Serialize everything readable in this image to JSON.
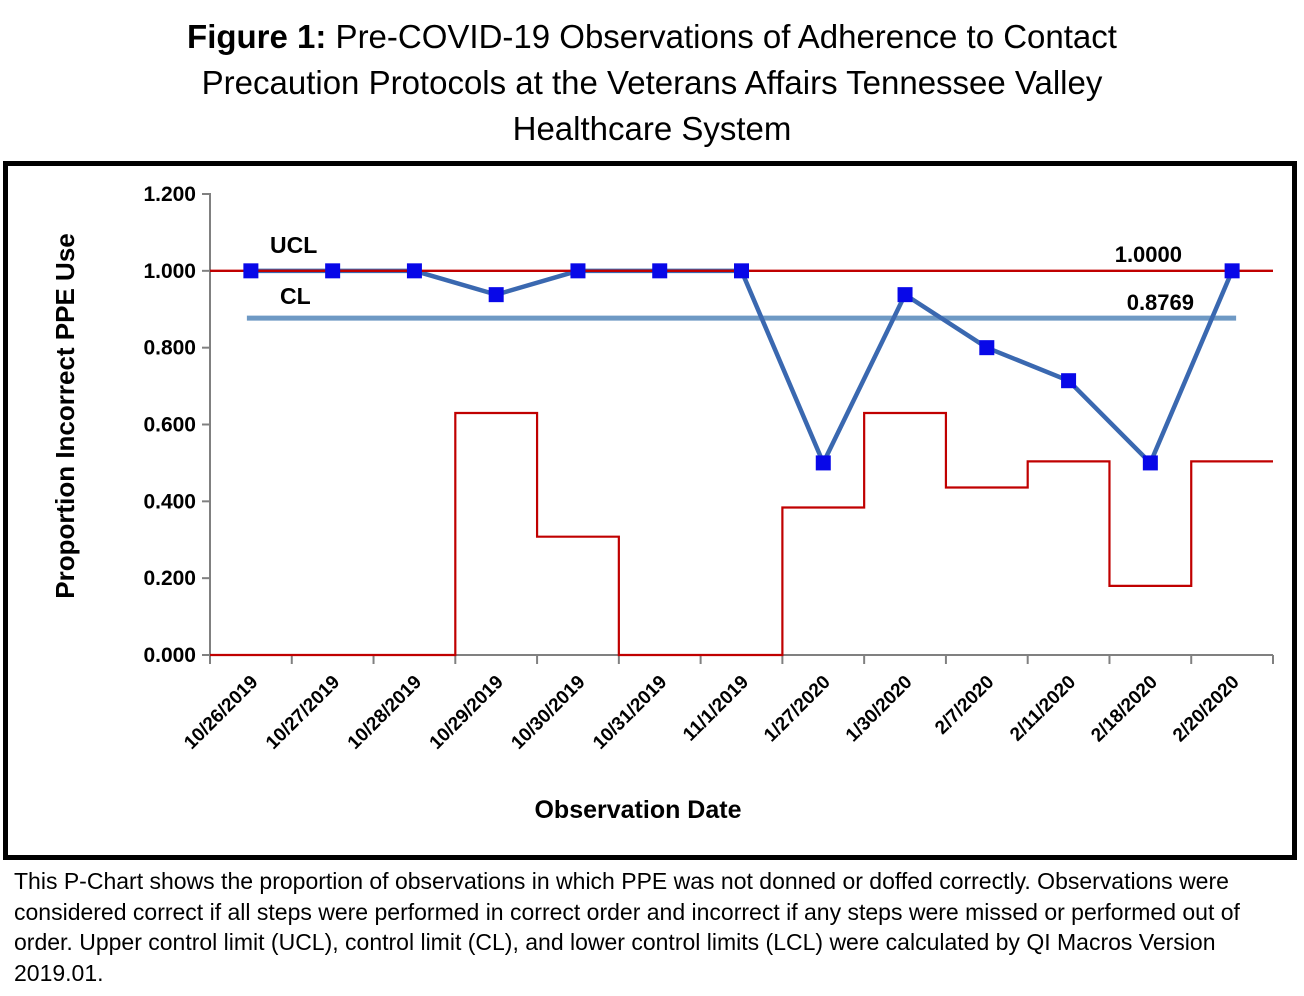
{
  "title": {
    "prefix": "Figure 1:",
    "line1_rest": " Pre-COVID-19 Observations of Adherence to Contact",
    "line2": "Precaution Protocols at the Veterans Affairs Tennessee Valley",
    "line3": "Healthcare System"
  },
  "caption": "This P-Chart shows the proportion of observations in which PPE was not donned or doffed correctly. Observations were considered correct if all steps were performed in correct order and incorrect if any steps were missed or performed out of order. Upper control limit (UCL), control limit (CL), and lower control limits (LCL) were calculated by QI Macros Version 2019.01.",
  "chart_data": {
    "type": "line",
    "xlabel": "Observation Date",
    "ylabel": "Proportion Incorrect PPE Use",
    "ylim": [
      0,
      1.2
    ],
    "ytick_labels": [
      "0.000",
      "0.200",
      "0.400",
      "0.600",
      "0.800",
      "1.000",
      "1.200"
    ],
    "grid": false,
    "legend_position": "none",
    "categories": [
      "10/26/2019",
      "10/27/2019",
      "10/28/2019",
      "10/29/2019",
      "10/30/2019",
      "10/31/2019",
      "11/1/2019",
      "1/27/2020",
      "1/30/2020",
      "2/7/2020",
      "2/11/2020",
      "2/18/2020",
      "2/20/2020"
    ],
    "series": [
      {
        "name": "Proportion Incorrect PPE Use",
        "type": "line-with-square-markers",
        "line_color": "#3A68B0",
        "marker_color": "#0808E8",
        "values": [
          1.0,
          1.0,
          1.0,
          0.938,
          1.0,
          1.0,
          1.0,
          0.5,
          0.938,
          0.8,
          0.714,
          0.5,
          1.0
        ]
      },
      {
        "name": "UCL",
        "type": "constant-line",
        "color": "#C00000",
        "value": 1.0
      },
      {
        "name": "CL",
        "type": "constant-line",
        "color": "#6E99C4",
        "value": 0.8769
      },
      {
        "name": "LCL",
        "type": "step-line",
        "color": "#C00000",
        "values": [
          0.0,
          0.0,
          0.0,
          0.63,
          0.308,
          0.0,
          0.0,
          0.384,
          0.63,
          0.436,
          0.504,
          0.18,
          0.504
        ]
      }
    ],
    "annotations": {
      "ucl_label": "UCL",
      "cl_label": "CL",
      "ucl_value_label": "1.0000",
      "cl_value_label": "0.8769"
    },
    "axis_color": "#808080"
  }
}
